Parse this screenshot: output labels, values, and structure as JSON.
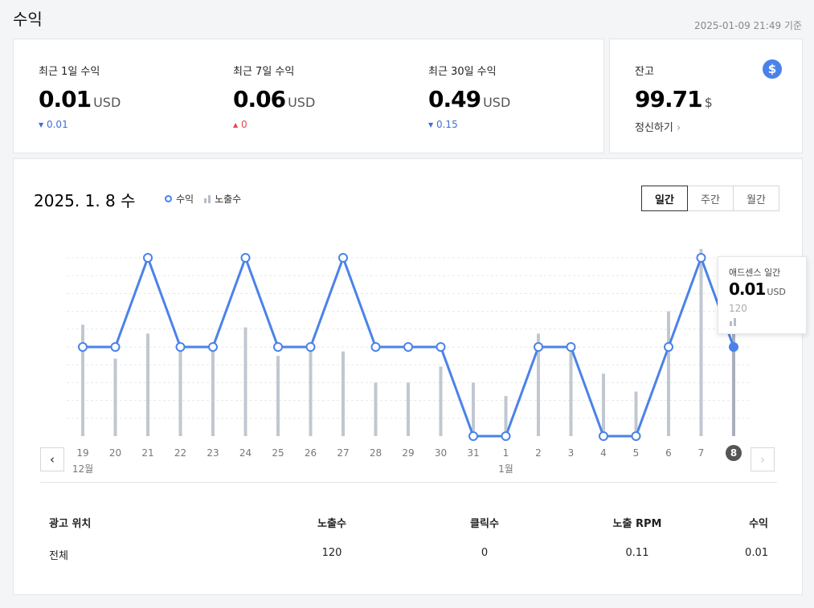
{
  "page": {
    "title": "수익",
    "timestamp": "2025-01-09 21:49 기준"
  },
  "summary": [
    {
      "label": "최근 1일 수익",
      "value": "0.01",
      "unit": "USD",
      "change_arrow": "▼",
      "change": "0.01",
      "direction": "down"
    },
    {
      "label": "최근 7일 수익",
      "value": "0.06",
      "unit": "USD",
      "change_arrow": "▲",
      "change": "0",
      "direction": "up"
    },
    {
      "label": "최근 30일 수익",
      "value": "0.49",
      "unit": "USD",
      "change_arrow": "▼",
      "change": "0.15",
      "direction": "down"
    }
  ],
  "balance": {
    "label": "잔고",
    "value": "99.71",
    "unit": "$",
    "settle_label": "정신하기",
    "icon": "dollar-icon",
    "icon_glyph": "$"
  },
  "chart_header": {
    "date": "2025. 1. 8 수",
    "legend_revenue": "수익",
    "legend_impressions": "노출수",
    "tabs": [
      "일간",
      "주간",
      "월간"
    ],
    "active_tab": 0
  },
  "tooltip": {
    "title": "애드센스 일간",
    "value": "0.01",
    "unit": "USD",
    "impressions": "120"
  },
  "colors": {
    "line": "#4a82ea",
    "bar": "#c1c7d1",
    "selected_bar": "#a8b0bd",
    "accent": "#4a82ea",
    "selected_badge": "#555555"
  },
  "chart_data": {
    "type": "line",
    "x": [
      "19",
      "20",
      "21",
      "22",
      "23",
      "24",
      "25",
      "26",
      "27",
      "28",
      "29",
      "30",
      "31",
      "1",
      "2",
      "3",
      "4",
      "5",
      "6",
      "7",
      "8"
    ],
    "month_labels": [
      {
        "index": 0,
        "text": "12월"
      },
      {
        "index": 13,
        "text": "1월"
      }
    ],
    "series": [
      {
        "name": "수익",
        "type": "line",
        "values": [
          0.01,
          0.01,
          0.02,
          0.01,
          0.01,
          0.02,
          0.01,
          0.01,
          0.02,
          0.01,
          0.01,
          0.01,
          0,
          0,
          0.01,
          0.01,
          0,
          0,
          0.01,
          0.02,
          0.01
        ]
      },
      {
        "name": "노출수",
        "type": "bar",
        "values": [
          125,
          87,
          115,
          100,
          100,
          122,
          90,
          98,
          95,
          60,
          60,
          78,
          60,
          45,
          115,
          100,
          70,
          50,
          140,
          210,
          120
        ]
      }
    ],
    "selected_index": 20,
    "revenue_range": [
      0,
      0.02
    ],
    "impressions_range": [
      0,
      200
    ],
    "grid": true
  },
  "table": {
    "headers": [
      "광고 위치",
      "노출수",
      "클릭수",
      "노출 RPM",
      "수익"
    ],
    "rows": [
      [
        "전체",
        "120",
        "0",
        "0.11",
        "0.01"
      ]
    ]
  },
  "nav": {
    "prev": "‹",
    "next": "›"
  }
}
